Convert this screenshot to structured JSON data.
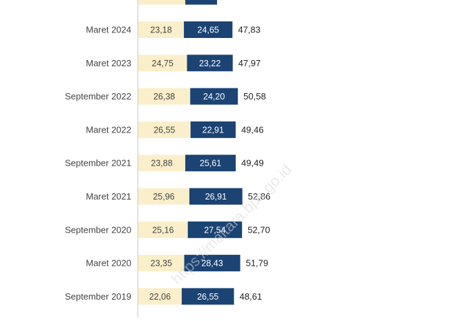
{
  "chart_data": {
    "type": "bar",
    "orientation": "horizontal",
    "stacked": true,
    "categories": [
      "Maret 2024",
      "Maret 2023",
      "September 2022",
      "Maret 2022",
      "September 2021",
      "Maret 2021",
      "September 2020",
      "Maret 2020",
      "September 2019"
    ],
    "series": [
      {
        "color": "#FBEFCB",
        "label_color": "#444444",
        "values": [
          "23,18",
          "24,75",
          "26,38",
          "26,55",
          "23,88",
          "25,96",
          "25,16",
          "23,35",
          "22,06"
        ]
      },
      {
        "color": "#1B4373",
        "label_color": "#ffffff",
        "values": [
          "24,65",
          "23,22",
          "24,20",
          "22,91",
          "25,61",
          "26,91",
          "27,54",
          "28,43",
          "26,55"
        ]
      }
    ],
    "totals": [
      "47,83",
      "47,97",
      "50,58",
      "49,46",
      "49,49",
      "52,86",
      "52,70",
      "51,79",
      "48,61"
    ],
    "partial_top_bar": {
      "series": [
        0,
        1
      ],
      "shown": "cropped at top edge"
    },
    "watermark": "https://maltara.bps.go.id",
    "grid": false,
    "legend": "none"
  }
}
